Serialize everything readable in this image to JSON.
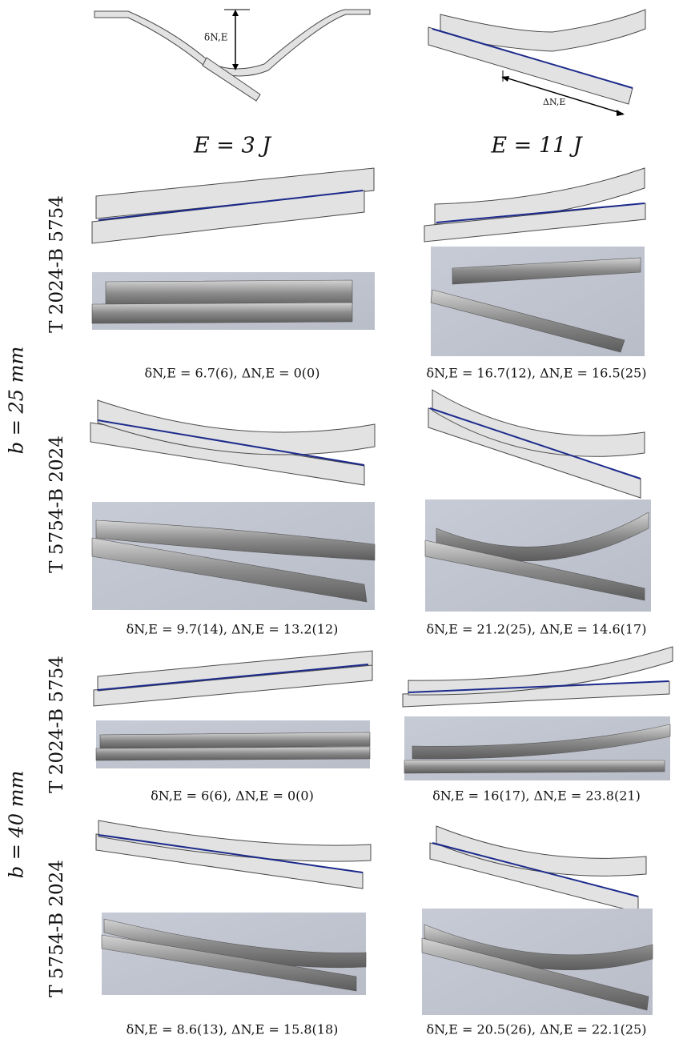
{
  "schematic": {
    "deflection_label": "δN,E",
    "slip_label": "ΔN,E"
  },
  "columns": [
    "E = 3 J",
    "E = 11 J"
  ],
  "groups": [
    {
      "label": "b = 25 mm",
      "rows": [
        {
          "label": "T 2024-B 5754",
          "captions": [
            "δN,E = 6.7(6), ΔN,E = 0(0)",
            "δN,E = 16.7(12), ΔN,E = 16.5(25)"
          ]
        },
        {
          "label": "T 5754-B 2024",
          "captions": [
            "δN,E = 9.7(14), ΔN,E = 13.2(12)",
            "δN,E = 21.2(25), ΔN,E = 14.6(17)"
          ]
        }
      ]
    },
    {
      "label": "b = 40 mm",
      "rows": [
        {
          "label": "T 2024-B 5754",
          "captions": [
            "δN,E = 6(6), ΔN,E = 0(0)",
            "δN,E = 16(17), ΔN,E = 23.8(21)"
          ]
        },
        {
          "label": "T 5754-B 2024",
          "captions": [
            "δN,E = 8.6(13), ΔN,E = 15.8(18)",
            "δN,E = 20.5(26), ΔN,E = 22.1(25)"
          ]
        }
      ]
    }
  ]
}
